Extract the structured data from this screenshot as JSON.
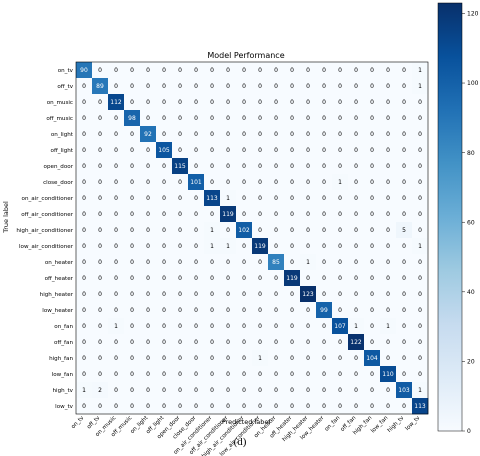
{
  "caption": "(d)",
  "chart_data": {
    "type": "heatmap",
    "title": "Model Performance",
    "xlabel": "Predicted label",
    "ylabel": "True label",
    "labels": [
      "on_tv",
      "off_tv",
      "on_music",
      "off_music",
      "on_light",
      "off_light",
      "open_door",
      "close_door",
      "on_air_conditioner",
      "off_air_conditioner",
      "high_air_conditioner",
      "low_air_conditioner",
      "on_heater",
      "off_heater",
      "high_heater",
      "low_heater",
      "on_fan",
      "off_fan",
      "high_fan",
      "low_fan",
      "high_tv",
      "low_tv"
    ],
    "matrix": [
      [
        90,
        0,
        0,
        0,
        0,
        0,
        0,
        0,
        0,
        0,
        0,
        0,
        0,
        0,
        0,
        0,
        0,
        0,
        0,
        0,
        0,
        1
      ],
      [
        0,
        89,
        0,
        0,
        0,
        0,
        0,
        0,
        0,
        0,
        0,
        0,
        0,
        0,
        0,
        0,
        0,
        0,
        0,
        0,
        0,
        1
      ],
      [
        0,
        0,
        112,
        0,
        0,
        0,
        0,
        0,
        0,
        0,
        0,
        0,
        0,
        0,
        0,
        0,
        0,
        0,
        0,
        0,
        0,
        0
      ],
      [
        0,
        0,
        0,
        98,
        0,
        0,
        0,
        0,
        0,
        0,
        0,
        0,
        0,
        0,
        0,
        0,
        0,
        0,
        0,
        0,
        0,
        0
      ],
      [
        0,
        0,
        0,
        0,
        92,
        0,
        0,
        0,
        0,
        0,
        0,
        0,
        0,
        0,
        0,
        0,
        0,
        0,
        0,
        0,
        0,
        0
      ],
      [
        0,
        0,
        0,
        0,
        0,
        105,
        0,
        0,
        0,
        0,
        0,
        0,
        0,
        0,
        0,
        0,
        0,
        0,
        0,
        0,
        0,
        0
      ],
      [
        0,
        0,
        0,
        0,
        0,
        0,
        115,
        0,
        0,
        0,
        0,
        0,
        0,
        0,
        0,
        0,
        0,
        0,
        0,
        0,
        0,
        0
      ],
      [
        0,
        0,
        0,
        0,
        0,
        0,
        0,
        101,
        0,
        0,
        0,
        0,
        0,
        0,
        0,
        0,
        1,
        0,
        0,
        0,
        0,
        0
      ],
      [
        0,
        0,
        0,
        0,
        0,
        0,
        0,
        0,
        113,
        1,
        0,
        0,
        0,
        0,
        0,
        0,
        0,
        0,
        0,
        0,
        0,
        0
      ],
      [
        0,
        0,
        0,
        0,
        0,
        0,
        0,
        0,
        0,
        119,
        0,
        0,
        0,
        0,
        0,
        0,
        0,
        0,
        0,
        0,
        0,
        0
      ],
      [
        0,
        0,
        0,
        0,
        0,
        0,
        0,
        0,
        1,
        0,
        102,
        0,
        0,
        0,
        0,
        0,
        0,
        0,
        0,
        0,
        5,
        0
      ],
      [
        0,
        0,
        0,
        0,
        0,
        0,
        0,
        0,
        1,
        1,
        0,
        119,
        0,
        0,
        0,
        0,
        0,
        0,
        0,
        0,
        0,
        1
      ],
      [
        0,
        0,
        0,
        0,
        0,
        0,
        0,
        0,
        0,
        0,
        0,
        0,
        85,
        0,
        1,
        0,
        0,
        0,
        0,
        0,
        0,
        0
      ],
      [
        0,
        0,
        0,
        0,
        0,
        0,
        0,
        0,
        0,
        0,
        0,
        0,
        0,
        119,
        0,
        0,
        0,
        0,
        0,
        0,
        0,
        0
      ],
      [
        0,
        0,
        0,
        0,
        0,
        0,
        0,
        0,
        0,
        0,
        0,
        0,
        0,
        0,
        123,
        0,
        0,
        0,
        0,
        0,
        0,
        0
      ],
      [
        0,
        0,
        0,
        0,
        0,
        0,
        0,
        0,
        0,
        0,
        0,
        0,
        0,
        0,
        0,
        99,
        0,
        0,
        0,
        0,
        0,
        0
      ],
      [
        0,
        0,
        1,
        0,
        0,
        0,
        0,
        0,
        0,
        0,
        0,
        0,
        0,
        0,
        0,
        0,
        107,
        1,
        0,
        1,
        0,
        0
      ],
      [
        0,
        0,
        0,
        0,
        0,
        0,
        0,
        0,
        0,
        0,
        0,
        0,
        0,
        0,
        0,
        0,
        0,
        122,
        0,
        0,
        0,
        0
      ],
      [
        0,
        0,
        0,
        0,
        0,
        0,
        0,
        0,
        0,
        0,
        0,
        1,
        0,
        0,
        0,
        0,
        0,
        0,
        104,
        0,
        0,
        0
      ],
      [
        0,
        0,
        0,
        0,
        0,
        0,
        0,
        0,
        0,
        0,
        0,
        0,
        0,
        0,
        0,
        0,
        0,
        0,
        0,
        110,
        0,
        0
      ],
      [
        1,
        2,
        0,
        0,
        0,
        0,
        0,
        0,
        0,
        0,
        0,
        0,
        0,
        0,
        0,
        0,
        0,
        0,
        0,
        0,
        103,
        1
      ],
      [
        0,
        0,
        0,
        0,
        0,
        0,
        0,
        0,
        0,
        0,
        0,
        0,
        0,
        0,
        0,
        0,
        0,
        0,
        0,
        0,
        0,
        113
      ]
    ],
    "colorbar": {
      "min": 0,
      "max": 123,
      "ticks": [
        0,
        20,
        40,
        60,
        80,
        100,
        120
      ]
    },
    "colormap": [
      "#f7fbff",
      "#deebf7",
      "#c6dbef",
      "#9ecae1",
      "#6baed6",
      "#4292c6",
      "#2171b5",
      "#08519c",
      "#08306b"
    ]
  }
}
